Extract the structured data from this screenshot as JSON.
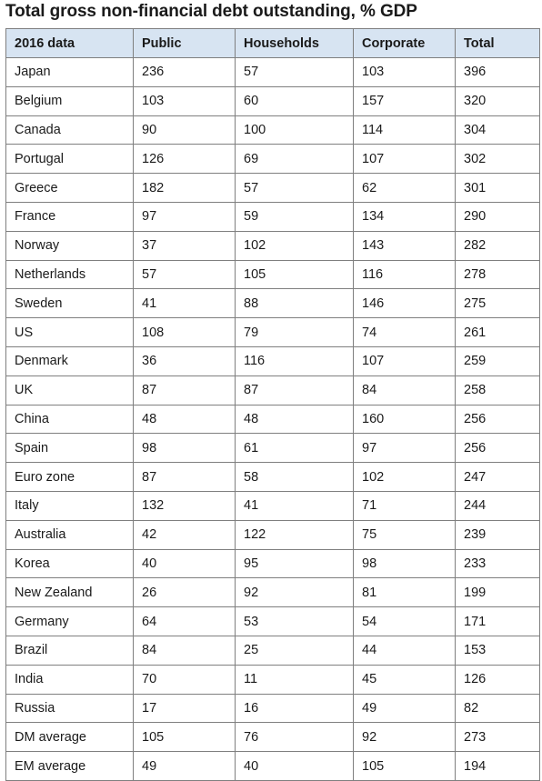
{
  "title": "Total gross non-financial debt outstanding, % GDP",
  "chart_data": {
    "type": "table",
    "title": "Total gross non-financial debt outstanding, % GDP",
    "columns": [
      "2016 data",
      "Public",
      "Households",
      "Corporate",
      "Total"
    ],
    "rows": [
      [
        "Japan",
        "236",
        "57",
        "103",
        "396"
      ],
      [
        "Belgium",
        "103",
        "60",
        "157",
        "320"
      ],
      [
        "Canada",
        "90",
        "100",
        "114",
        "304"
      ],
      [
        "Portugal",
        "126",
        "69",
        "107",
        "302"
      ],
      [
        "Greece",
        "182",
        "57",
        "62",
        "301"
      ],
      [
        "France",
        "97",
        "59",
        "134",
        "290"
      ],
      [
        "Norway",
        "37",
        "102",
        "143",
        "282"
      ],
      [
        "Netherlands",
        "57",
        "105",
        "116",
        "278"
      ],
      [
        "Sweden",
        "41",
        "88",
        "146",
        "275"
      ],
      [
        "US",
        "108",
        "79",
        "74",
        "261"
      ],
      [
        "Denmark",
        "36",
        "116",
        "107",
        "259"
      ],
      [
        "UK",
        "87",
        "87",
        "84",
        "258"
      ],
      [
        "China",
        "48",
        "48",
        "160",
        "256"
      ],
      [
        "Spain",
        "98",
        "61",
        "97",
        "256"
      ],
      [
        "Euro zone",
        "87",
        "58",
        "102",
        "247"
      ],
      [
        "Italy",
        "132",
        "41",
        "71",
        "244"
      ],
      [
        "Australia",
        "42",
        "122",
        "75",
        "239"
      ],
      [
        "Korea",
        "40",
        "95",
        "98",
        "233"
      ],
      [
        "New Zealand",
        "26",
        "92",
        "81",
        "199"
      ],
      [
        "Germany",
        "64",
        "53",
        "54",
        "171"
      ],
      [
        "Brazil",
        "84",
        "25",
        "44",
        "153"
      ],
      [
        "India",
        "70",
        "11",
        "45",
        "126"
      ],
      [
        "Russia",
        "17",
        "16",
        "49",
        "82"
      ],
      [
        "DM average",
        "105",
        "76",
        "92",
        "273"
      ],
      [
        "EM average",
        "49",
        "40",
        "105",
        "194"
      ]
    ],
    "header_color": "#d7e4f2",
    "border_color": "#7f7f7f"
  }
}
